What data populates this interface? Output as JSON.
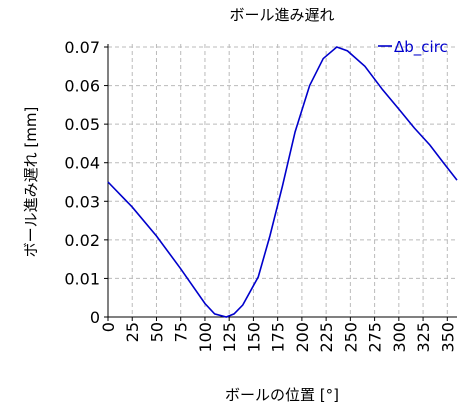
{
  "chart_data": {
    "type": "line",
    "title": "ボール進み遅れ",
    "x_label": "ボールの位置 [°]",
    "y_label": "ボール進み遅れ [mm]",
    "x": [
      0,
      25,
      50,
      75,
      100,
      110,
      122,
      130,
      139,
      155,
      167,
      180,
      193,
      208,
      222,
      236,
      247,
      265,
      283,
      301,
      316,
      332,
      346,
      360
    ],
    "series": [
      {
        "name": "Δb_circ",
        "color": "#0000cc",
        "values": [
          0.035,
          0.0285,
          0.021,
          0.0125,
          0.0035,
          0.0008,
          0,
          0.0008,
          0.0031,
          0.0104,
          0.021,
          0.034,
          0.048,
          0.06,
          0.067,
          0.07,
          0.069,
          0.065,
          0.059,
          0.0536,
          0.049,
          0.0446,
          0.04,
          0.0355
        ]
      }
    ],
    "xlim": [
      0,
      360
    ],
    "xticks": [
      0,
      25,
      50,
      75,
      100,
      125,
      150,
      175,
      200,
      225,
      250,
      275,
      300,
      325,
      350
    ],
    "ylim": [
      0,
      0.07
    ],
    "yticks": [
      0,
      0.01,
      0.02,
      0.03,
      0.04,
      0.05,
      0.06,
      0.07
    ],
    "grid": true,
    "legend": "upper right"
  }
}
